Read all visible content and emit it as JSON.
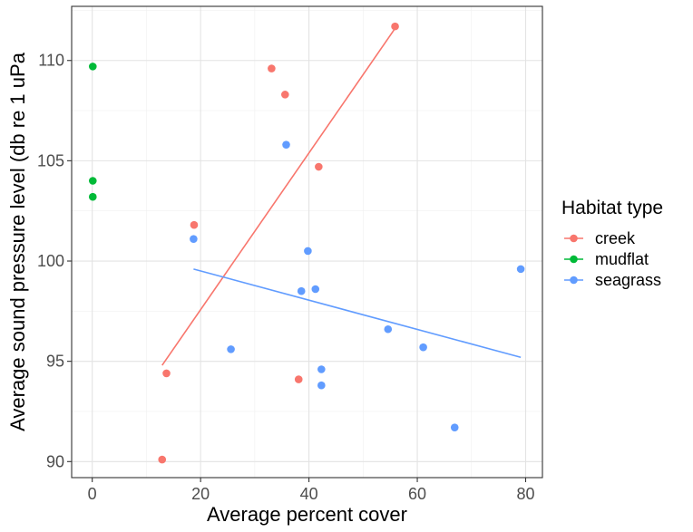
{
  "chart_data": {
    "type": "scatter",
    "title": "",
    "xlabel": "Average percent cover",
    "ylabel": "Average sound pressure level (db re 1 uPa",
    "xlim": [
      -3.8,
      83.1
    ],
    "ylim": [
      89.2,
      112.7
    ],
    "xticks": [
      0,
      20,
      40,
      60,
      80
    ],
    "yticks": [
      90,
      95,
      100,
      105,
      110
    ],
    "grid": true,
    "legend": {
      "title": "Habitat type",
      "position": "right"
    },
    "series": [
      {
        "name": "creek",
        "color": "#F8766D",
        "points": [
          {
            "x": 12.9,
            "y": 90.1
          },
          {
            "x": 13.7,
            "y": 94.4
          },
          {
            "x": 18.8,
            "y": 101.8
          },
          {
            "x": 33.1,
            "y": 109.6
          },
          {
            "x": 35.6,
            "y": 108.3
          },
          {
            "x": 38.1,
            "y": 94.1
          },
          {
            "x": 41.8,
            "y": 104.7
          },
          {
            "x": 55.9,
            "y": 111.7
          }
        ],
        "fit": {
          "x": [
            12.9,
            55.9
          ],
          "y": [
            94.8,
            111.6
          ]
        }
      },
      {
        "name": "mudflat",
        "color": "#00BA38",
        "points": [
          {
            "x": 0.1,
            "y": 109.7
          },
          {
            "x": 0.1,
            "y": 104.0
          },
          {
            "x": 0.1,
            "y": 103.2
          }
        ]
      },
      {
        "name": "seagrass",
        "color": "#619CFF",
        "points": [
          {
            "x": 18.7,
            "y": 101.1
          },
          {
            "x": 25.6,
            "y": 95.6
          },
          {
            "x": 35.8,
            "y": 105.8
          },
          {
            "x": 38.6,
            "y": 98.5
          },
          {
            "x": 39.8,
            "y": 100.5
          },
          {
            "x": 41.2,
            "y": 98.6
          },
          {
            "x": 42.3,
            "y": 94.6
          },
          {
            "x": 42.3,
            "y": 93.8
          },
          {
            "x": 54.6,
            "y": 96.6
          },
          {
            "x": 61.1,
            "y": 95.7
          },
          {
            "x": 66.9,
            "y": 91.7
          },
          {
            "x": 79.1,
            "y": 99.6
          }
        ],
        "fit": {
          "x": [
            18.7,
            79.1
          ],
          "y": [
            99.6,
            95.2
          ]
        }
      }
    ]
  }
}
